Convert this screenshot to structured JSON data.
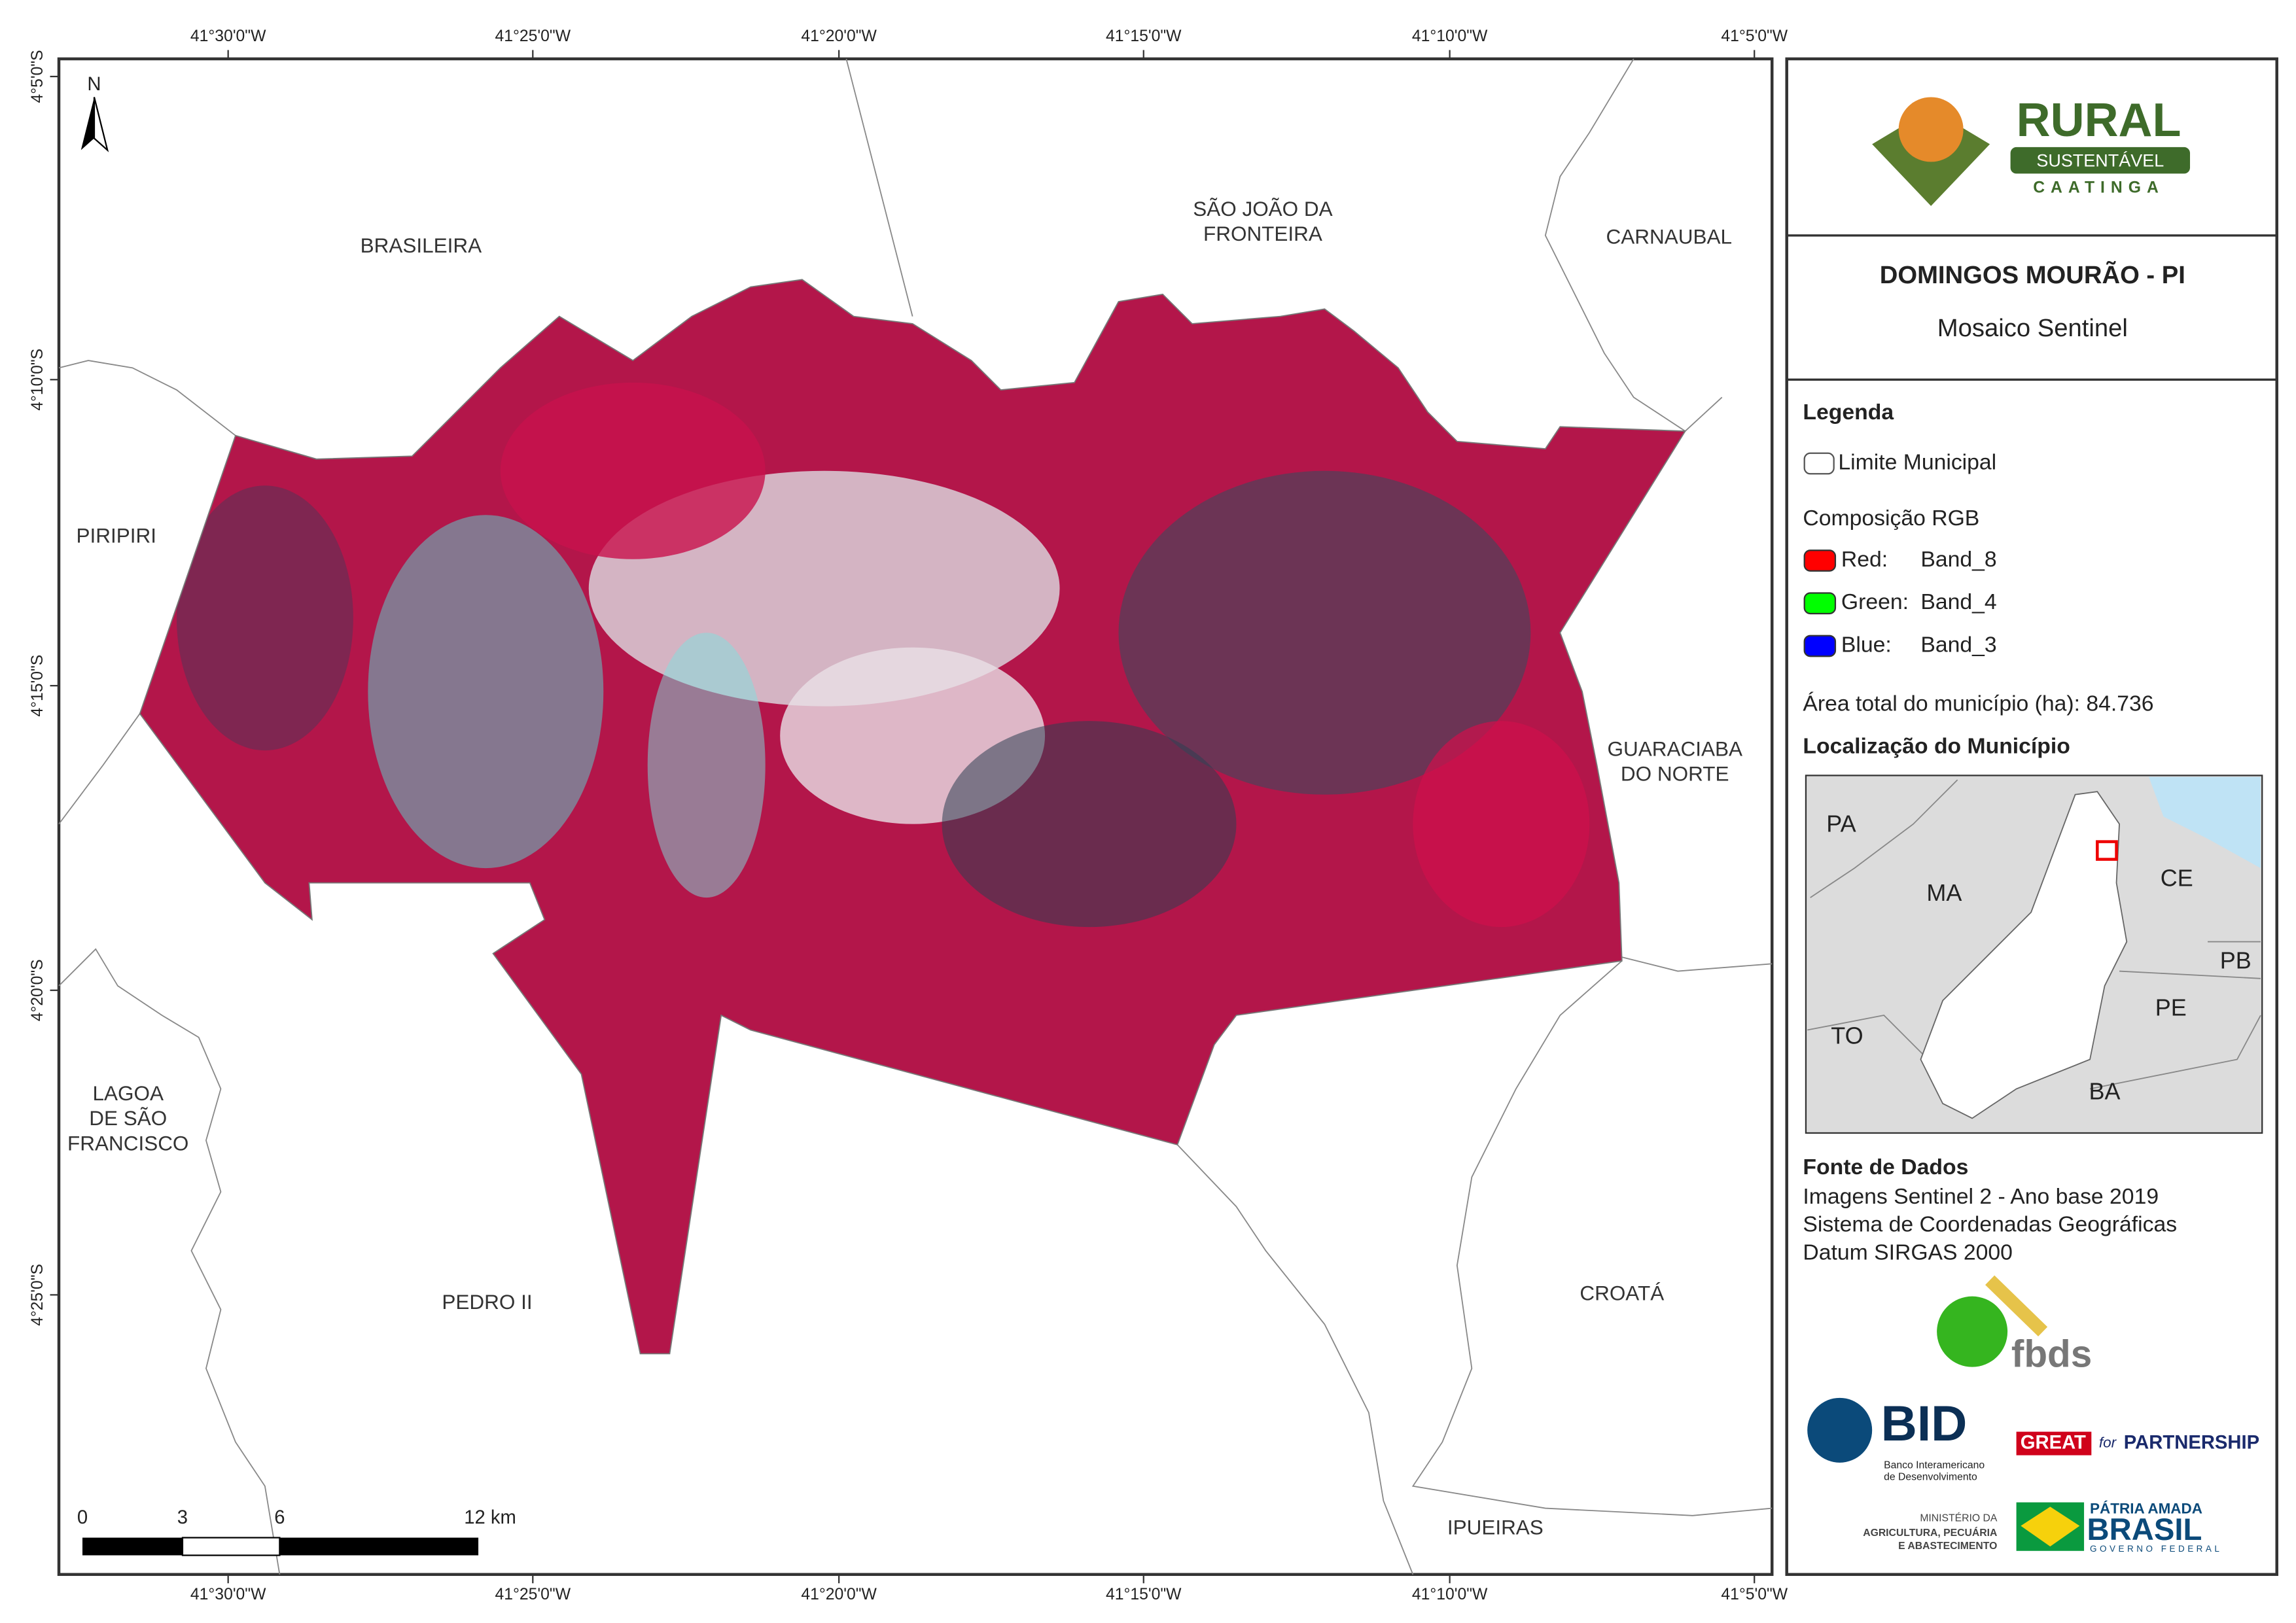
{
  "map": {
    "x_labels": [
      "41°30'0\"W",
      "41°25'0\"W",
      "41°20'0\"W",
      "41°15'0\"W",
      "41°10'0\"W",
      "41°5'0\"W"
    ],
    "y_labels": [
      "4°5'0\"S",
      "4°10'0\"S",
      "4°15'0\"S",
      "4°20'0\"S",
      "4°25'0\"S"
    ],
    "north": "N",
    "places": [
      {
        "lines": [
          "BRASILEIRA"
        ]
      },
      {
        "lines": [
          "SÃO JOÃO DA",
          "FRONTEIRA"
        ]
      },
      {
        "lines": [
          "CARNAUBAL"
        ]
      },
      {
        "lines": [
          "PIRIPIRI"
        ]
      },
      {
        "lines": [
          "GUARACIABA",
          "DO NORTE"
        ]
      },
      {
        "lines": [
          "LAGOA",
          "DE SÃO",
          "FRANCISCO"
        ]
      },
      {
        "lines": [
          "PEDRO II"
        ]
      },
      {
        "lines": [
          "CROATÁ"
        ]
      },
      {
        "lines": [
          "IPUEIRAS"
        ]
      }
    ],
    "scale_labels": [
      "0",
      "3",
      "6",
      "12 km"
    ]
  },
  "panel": {
    "logo": {
      "title": "RURAL",
      "subtitle": "SUSTENTÁVEL",
      "tagline": "CAATINGA"
    },
    "heading": "DOMINGOS MOURÃO - PI",
    "subheading": "Mosaico Sentinel",
    "legend": {
      "title": "Legenda",
      "boundary": "Limite Municipal",
      "rgb_title": "Composição RGB",
      "bands": [
        {
          "channel": "Red:",
          "band": "Band_8"
        },
        {
          "channel": "Green:",
          "band": "Band_4"
        },
        {
          "channel": "Blue:",
          "band": "Band_3"
        }
      ],
      "area": "Área total do município (ha): 84.736"
    },
    "location": {
      "title": "Localização do Município",
      "states": [
        "PA",
        "MA",
        "CE",
        "PB",
        "PE",
        "TO",
        "BA"
      ]
    },
    "sources": {
      "title": "Fonte de Dados",
      "lines": [
        "Imagens Sentinel 2 - Ano base 2019",
        "Sistema de Coordenadas Geográficas",
        "Datum SIRGAS 2000"
      ]
    },
    "logos": {
      "fbds": "fbds",
      "bid": "BID",
      "bid_name": [
        "Banco Interamericano",
        "de Desenvolvimento"
      ],
      "great": "GREAT",
      "great_for": "for",
      "partnership": "PARTNERSHIP",
      "ministry": [
        "MINISTÉRIO DA",
        "AGRICULTURA, PECUÁRIA",
        "E ABASTECIMENTO"
      ],
      "patria": "PÁTRIA AMADA",
      "brasil": "BRASIL",
      "governo": "GOVERNO FEDERAL"
    }
  }
}
